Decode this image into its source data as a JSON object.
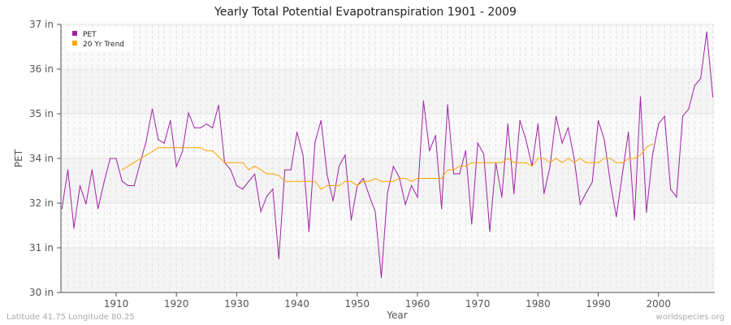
{
  "chart_data": {
    "type": "line",
    "title": "Yearly Total Potential Evapotranspiration 1901 - 2009",
    "xlabel": "Year",
    "ylabel": "PET",
    "ylim": [
      30,
      37
    ],
    "xlim": [
      1901,
      2009
    ],
    "y_tick_labels": [
      "30 in",
      "31 in",
      "32 in",
      "34 in",
      "35 in",
      "36 in",
      "37 in"
    ],
    "x_ticks": [
      1910,
      1920,
      1930,
      1940,
      1950,
      1960,
      1970,
      1980,
      1990,
      2000
    ],
    "grid": true,
    "legend": "top-left",
    "series": [
      {
        "name": "PET",
        "color": "#a020a8",
        "start_year": 1901,
        "values": [
          32.19,
          33.2,
          31.68,
          32.79,
          32.31,
          33.2,
          32.19,
          32.88,
          33.5,
          33.5,
          32.9,
          32.79,
          32.79,
          33.39,
          33.96,
          34.79,
          33.99,
          33.9,
          34.49,
          33.29,
          33.68,
          34.69,
          34.3,
          34.3,
          34.4,
          34.3,
          34.89,
          33.39,
          33.2,
          32.79,
          32.7,
          32.9,
          33.09,
          32.11,
          32.51,
          32.7,
          30.88,
          33.2,
          33.2,
          34.19,
          33.59,
          31.59,
          33.92,
          34.49,
          33.08,
          32.39,
          33.3,
          33.59,
          31.89,
          32.79,
          32.98,
          32.53,
          32.11,
          30.39,
          32.58,
          33.29,
          33.0,
          32.3,
          32.79,
          32.49,
          35.0,
          33.7,
          34.1,
          32.19,
          34.9,
          33.1,
          33.1,
          33.7,
          31.79,
          33.9,
          33.61,
          31.59,
          33.39,
          32.49,
          34.4,
          32.58,
          34.49,
          33.99,
          33.3,
          34.4,
          32.58,
          33.29,
          34.6,
          33.9,
          34.3,
          33.5,
          32.3,
          32.6,
          32.88,
          34.49,
          33.99,
          32.88,
          31.98,
          33.1,
          34.19,
          31.89,
          35.11,
          32.09,
          33.59,
          34.4,
          34.6,
          32.7,
          32.49,
          34.6,
          34.79,
          35.4,
          35.59,
          36.8,
          35.11
        ]
      },
      {
        "name": "20 Yr Trend",
        "color": "#ffa500",
        "start_year": 1911,
        "values": [
          33.2,
          33.3,
          33.4,
          33.49,
          33.59,
          33.68,
          33.78,
          33.78,
          33.78,
          33.78,
          33.78,
          33.78,
          33.78,
          33.78,
          33.7,
          33.7,
          33.55,
          33.39,
          33.39,
          33.39,
          33.39,
          33.2,
          33.3,
          33.2,
          33.1,
          33.1,
          33.05,
          32.9,
          32.9,
          32.9,
          32.9,
          32.9,
          32.9,
          32.7,
          32.79,
          32.79,
          32.79,
          32.9,
          32.9,
          32.79,
          32.9,
          32.9,
          32.98,
          32.9,
          32.9,
          32.9,
          32.98,
          32.98,
          32.9,
          32.98,
          32.98,
          32.98,
          32.98,
          32.98,
          33.2,
          33.2,
          33.3,
          33.3,
          33.39,
          33.39,
          33.39,
          33.39,
          33.39,
          33.39,
          33.5,
          33.39,
          33.39,
          33.39,
          33.3,
          33.5,
          33.5,
          33.39,
          33.5,
          33.39,
          33.5,
          33.39,
          33.5,
          33.39,
          33.39,
          33.39,
          33.5,
          33.5,
          33.39,
          33.39,
          33.5,
          33.5,
          33.59,
          33.79,
          33.88
        ]
      }
    ]
  },
  "footer": {
    "location": "Latitude 41.75 Longitude 80.25",
    "source": "worldspecies.org"
  }
}
